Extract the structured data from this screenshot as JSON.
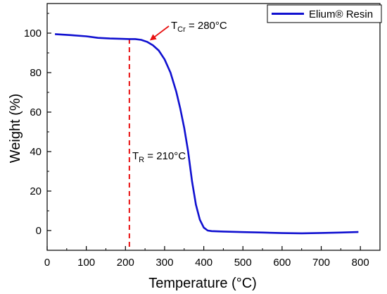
{
  "chart_data": {
    "type": "line",
    "title": "",
    "xlabel": "Temperature (°C)",
    "ylabel": "Weight (%)",
    "xlim": [
      0,
      850
    ],
    "ylim": [
      -10,
      115
    ],
    "xticks": [
      0,
      100,
      200,
      300,
      400,
      500,
      600,
      700,
      800
    ],
    "yticks": [
      0,
      20,
      40,
      60,
      80,
      100
    ],
    "grid": false,
    "legend_position": "top-right",
    "series": [
      {
        "name": "Elium® Resin",
        "color": "#1010d0",
        "x": [
          20,
          60,
          100,
          130,
          160,
          190,
          210,
          225,
          240,
          255,
          270,
          285,
          300,
          315,
          330,
          340,
          350,
          360,
          370,
          380,
          390,
          400,
          410,
          420,
          450,
          500,
          550,
          600,
          650,
          700,
          750,
          795
        ],
        "y": [
          99.5,
          99.0,
          98.4,
          97.6,
          97.3,
          97.1,
          97.0,
          97.0,
          96.6,
          95.6,
          93.9,
          91.2,
          86.7,
          80.0,
          70.2,
          61.8,
          52.0,
          40.2,
          25.0,
          13.0,
          5.5,
          1.5,
          0.0,
          -0.3,
          -0.5,
          -0.8,
          -1.0,
          -1.3,
          -1.4,
          -1.2,
          -1.0,
          -0.7
        ]
      }
    ],
    "annotations": {
      "tr": {
        "base": "T",
        "sub": "R",
        "text": " = 210°C",
        "line_x": 210,
        "line_color": "#e81010"
      },
      "tcr": {
        "base": "T",
        "sub": "Cr",
        "text": " = 280°C",
        "arrow_color": "#e81010",
        "point_x": 265,
        "point_y": 96
      }
    }
  }
}
